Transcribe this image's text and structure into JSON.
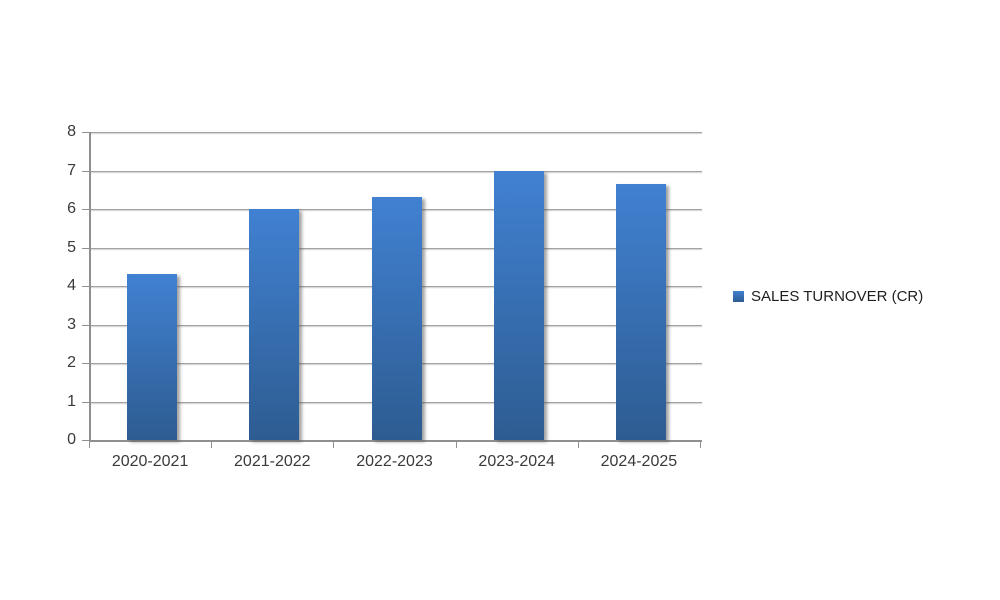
{
  "chart_data": {
    "type": "bar",
    "categories": [
      "2020-2021",
      "2021-2022",
      "2022-2023",
      "2023-2024",
      "2024-2025"
    ],
    "series": [
      {
        "name": "SALES TURNOVER (CR)",
        "values": [
          4.3,
          6.0,
          6.3,
          7.0,
          6.65
        ]
      }
    ],
    "ylim": [
      0,
      8
    ],
    "ytick_step": 1,
    "yticks": [
      0,
      1,
      2,
      3,
      4,
      5,
      6,
      7,
      8
    ],
    "grid": true,
    "legend_position": "right",
    "colors": {
      "bar_gradient_top": "#4181d2",
      "bar_gradient_bottom": "#2d5c91",
      "gridline": "#a2a2a2",
      "axis": "#8f8f8f",
      "text": "#3a3a3a"
    }
  },
  "legend": {
    "label": "SALES TURNOVER (CR)"
  }
}
